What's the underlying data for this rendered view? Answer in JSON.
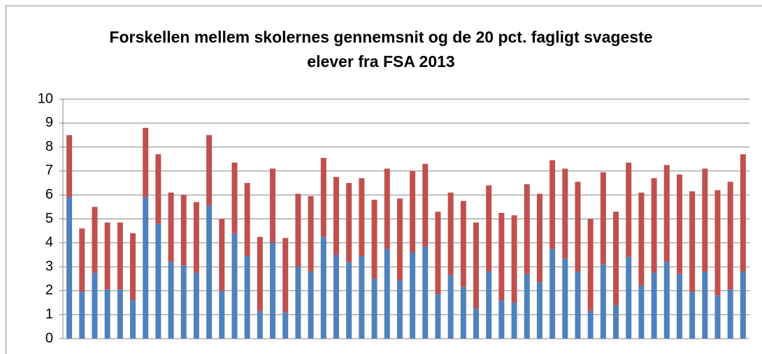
{
  "chart_data": {
    "type": "stacked_bar",
    "title": "Forskellen mellem skolernes gennemsnit og de 20 pct. fagligt svageste elever fra FSA 2013",
    "series": [
      {
        "color": "#4f81bd",
        "values": [
          5.9,
          1.95,
          2.75,
          2.05,
          2.05,
          1.6,
          5.9,
          4.8,
          3.2,
          3.05,
          2.75,
          5.55,
          2.0,
          4.4,
          3.45,
          1.15,
          4.0,
          1.1,
          3.0,
          2.8,
          4.25,
          3.5,
          3.2,
          3.45,
          2.5,
          3.75,
          2.45,
          3.6,
          3.85,
          1.85,
          2.65,
          2.15,
          1.25,
          2.8,
          1.6,
          1.5,
          2.7,
          2.35,
          3.75,
          3.35,
          2.8,
          1.15,
          3.1,
          1.4,
          3.4,
          2.2,
          2.75,
          3.2,
          2.7,
          1.95,
          2.8,
          1.8,
          2.05,
          2.8
        ]
      },
      {
        "color": "#c0504d",
        "values": [
          2.6,
          2.65,
          2.75,
          2.8,
          2.8,
          2.8,
          2.9,
          2.9,
          2.9,
          2.95,
          2.95,
          2.95,
          3.0,
          2.95,
          3.05,
          3.1,
          3.1,
          3.1,
          3.05,
          3.15,
          3.3,
          3.25,
          3.3,
          3.25,
          3.3,
          3.35,
          3.4,
          3.4,
          3.45,
          3.45,
          3.45,
          3.6,
          3.6,
          3.6,
          3.65,
          3.65,
          3.75,
          3.7,
          3.7,
          3.75,
          3.75,
          3.85,
          3.85,
          3.9,
          3.95,
          3.9,
          3.95,
          4.05,
          4.15,
          4.2,
          4.3,
          4.4,
          4.5,
          4.9
        ]
      }
    ],
    "ylim": [
      0,
      10
    ],
    "yticks": [
      0,
      1,
      2,
      3,
      4,
      5,
      6,
      7,
      8,
      9,
      10
    ],
    "grid": true
  }
}
